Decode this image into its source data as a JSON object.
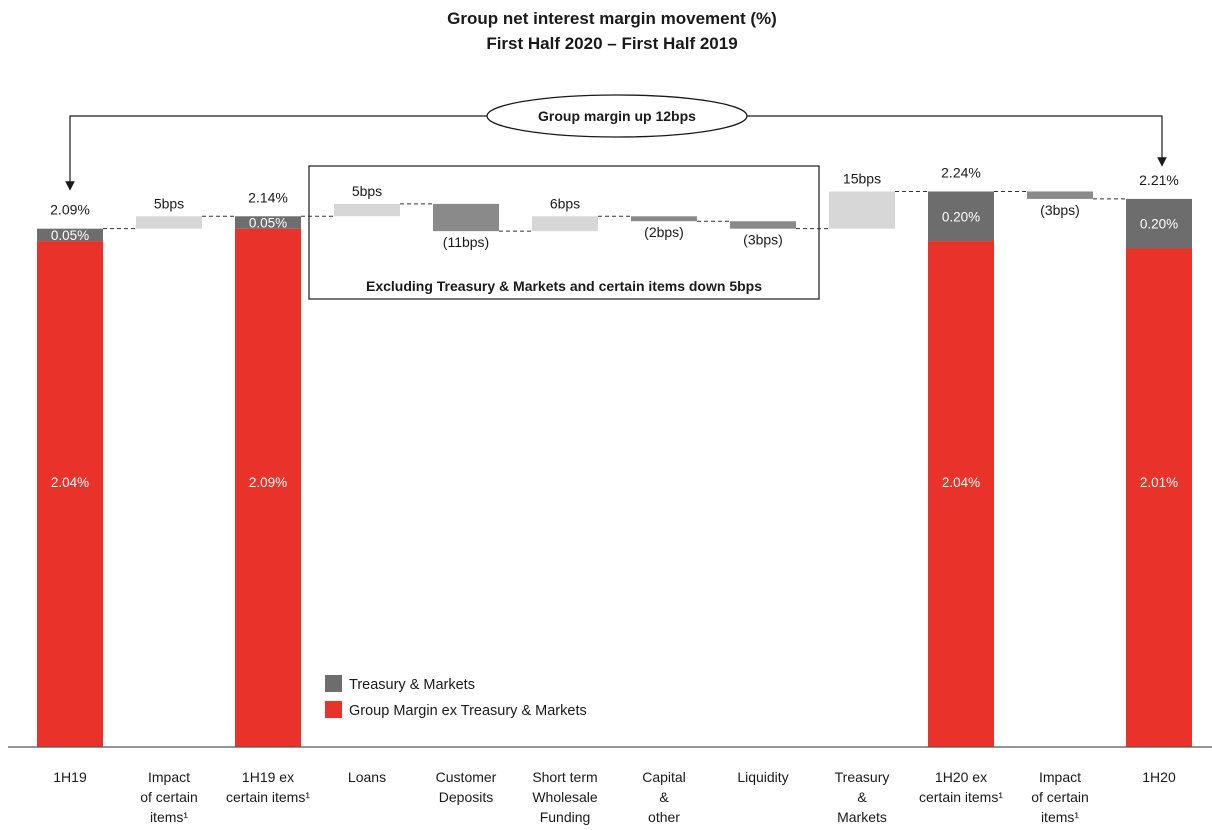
{
  "chart_data": {
    "type": "bar",
    "variant": "waterfall",
    "title": "Group net interest margin movement (%)",
    "subtitle": "First Half 2020 – First Half 2019",
    "categories": [
      [
        "1H19"
      ],
      [
        "Impact",
        "of certain",
        "items¹"
      ],
      [
        "1H19 ex",
        "certain items¹"
      ],
      [
        "Loans"
      ],
      [
        "Customer",
        "Deposits"
      ],
      [
        "Short term",
        "Wholesale",
        "Funding"
      ],
      [
        "Capital",
        "&",
        "other"
      ],
      [
        "Liquidity"
      ],
      [
        "Treasury",
        "&",
        "Markets"
      ],
      [
        "1H20 ex",
        "certain items¹"
      ],
      [
        "Impact",
        "of certain",
        "items¹"
      ],
      [
        "1H20"
      ]
    ],
    "series": [
      {
        "name": "Treasury & Markets",
        "color": "#6d6d6d"
      },
      {
        "name": "Group Margin ex Treasury & Markets",
        "color": "#e8322a"
      }
    ],
    "bars": [
      {
        "kind": "total",
        "base_value": 2.04,
        "base_label": "2.04%",
        "top_value": 0.05,
        "top_label": "0.05%",
        "total_label": "2.09%"
      },
      {
        "kind": "delta",
        "start": 2.09,
        "delta": 0.05,
        "color": "#d7d7d7",
        "label": "5bps"
      },
      {
        "kind": "total",
        "base_value": 2.09,
        "base_label": "2.09%",
        "top_value": 0.05,
        "top_label": "0.05%",
        "total_label": "2.14%"
      },
      {
        "kind": "delta",
        "start": 2.14,
        "delta": 0.05,
        "color": "#d7d7d7",
        "label": "5bps"
      },
      {
        "kind": "delta",
        "start": 2.19,
        "delta": -0.11,
        "color": "#8a8a8a",
        "label": "(11bps)"
      },
      {
        "kind": "delta",
        "start": 2.08,
        "delta": 0.06,
        "color": "#d7d7d7",
        "label": "6bps"
      },
      {
        "kind": "delta",
        "start": 2.14,
        "delta": -0.02,
        "color": "#8a8a8a",
        "label": "(2bps)"
      },
      {
        "kind": "delta",
        "start": 2.12,
        "delta": -0.03,
        "color": "#8a8a8a",
        "label": "(3bps)"
      },
      {
        "kind": "delta",
        "start": 2.09,
        "delta": 0.15,
        "color": "#d7d7d7",
        "label": "15bps"
      },
      {
        "kind": "total",
        "base_value": 2.04,
        "base_label": "2.04%",
        "top_value": 0.2,
        "top_label": "0.20%",
        "total_label": "2.24%"
      },
      {
        "kind": "delta",
        "start": 2.24,
        "delta": -0.03,
        "color": "#8a8a8a",
        "label": "(3bps)"
      },
      {
        "kind": "total",
        "base_value": 2.01,
        "base_label": "2.01%",
        "top_value": 0.2,
        "top_label": "0.20%",
        "total_label": "2.21%"
      }
    ],
    "callout": "Group margin up 12bps",
    "box_annotation": "Excluding Treasury & Markets and certain items down 5bps",
    "box_range": [
      3,
      7
    ],
    "legend_position": "bottom-center",
    "grid": false
  }
}
